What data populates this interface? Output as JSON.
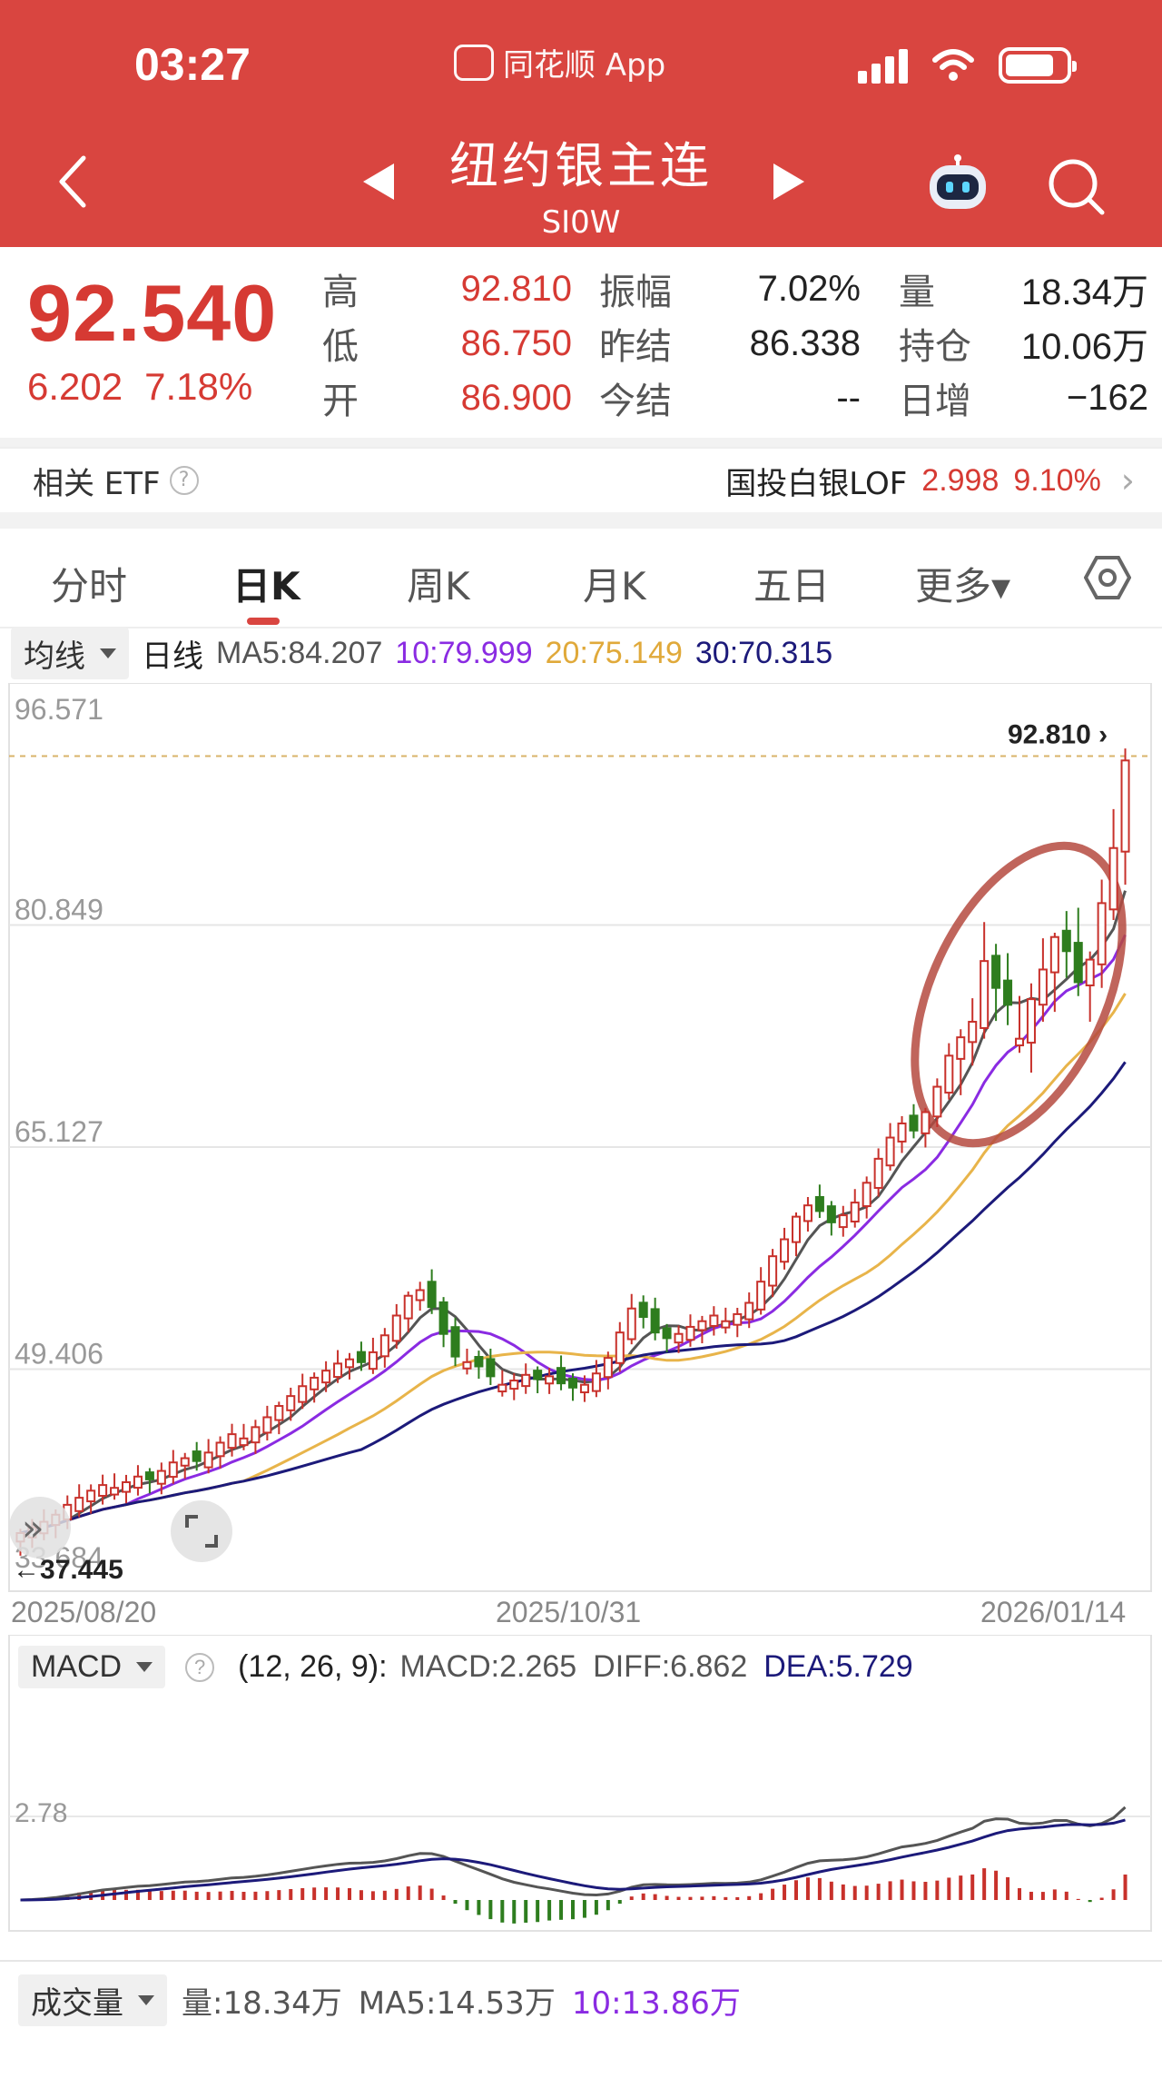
{
  "status": {
    "time": "03:27",
    "app_name": "同花顺 App"
  },
  "header": {
    "title": "纽约银主连",
    "code": "SI0W"
  },
  "quote": {
    "price": "92.540",
    "change": "6.202",
    "change_pct": "7.18%",
    "rows": [
      {
        "l1": "高",
        "v1": "92.810",
        "l2": "振幅",
        "v2": "7.02%",
        "l3": "量",
        "v3": "18.34万"
      },
      {
        "l1": "低",
        "v1": "86.750",
        "l2": "昨结",
        "v2": "86.338",
        "l3": "持仓",
        "v3": "10.06万"
      },
      {
        "l1": "开",
        "v1": "86.900",
        "l2": "今结",
        "v2": "--",
        "l3": "日增",
        "v3": "−162"
      }
    ]
  },
  "etf": {
    "label": "相关 ETF",
    "help": "?",
    "name": "国投白银LOF",
    "price": "2.998",
    "pct": "9.10%"
  },
  "tabs": [
    "分时",
    "日K",
    "周K",
    "月K",
    "五日",
    "更多▾"
  ],
  "indicator": {
    "select_label": "均线",
    "period": "日线",
    "ma5": "MA5:84.207",
    "ma10": "10:79.999",
    "ma20": "20:75.149",
    "ma30": "30:70.315"
  },
  "kchart": {
    "y_labels": [
      "96.571",
      "80.849",
      "65.127",
      "49.406",
      "33.684"
    ],
    "high_marker": "92.810",
    "low_marker": "←37.445",
    "dates": [
      "2025/08/20",
      "2025/10/31",
      "2026/01/14"
    ]
  },
  "macd": {
    "select_label": "MACD",
    "params": "(12, 26, 9):",
    "macd": "MACD:2.265",
    "diff": "DIFF:6.862",
    "dea": "DEA:5.729",
    "y_label": "2.78"
  },
  "volume": {
    "select_label": "成交量",
    "vol": "量:18.34万",
    "ma5": "MA5:14.53万",
    "ma10": "10:13.86万"
  },
  "colors": {
    "header": "#d94540",
    "up": "#c8312b",
    "down": "#2e7d1e",
    "ma5": "#555555",
    "ma10": "#8a2be2",
    "ma20": "#e8b44a",
    "ma30": "#1c1a7a",
    "annotation": "#b54a3f"
  },
  "chart_data": {
    "type": "candlestick",
    "x_range": [
      "2025/08/20",
      "2026/01/14"
    ],
    "ylim": [
      33.684,
      96.571
    ],
    "y_ticks": [
      96.571,
      80.849,
      65.127,
      49.406,
      33.684
    ],
    "closes": [
      37.8,
      38.2,
      38.6,
      39.1,
      39.8,
      40.3,
      40.8,
      41.2,
      41.0,
      41.4,
      41.8,
      41.6,
      42.2,
      42.8,
      43.1,
      42.9,
      43.5,
      44.2,
      44.8,
      44.5,
      45.3,
      46.0,
      46.8,
      47.5,
      48.2,
      48.8,
      49.3,
      49.8,
      50.1,
      49.9,
      50.6,
      51.8,
      53.2,
      54.6,
      55.0,
      53.8,
      51.9,
      50.3,
      49.9,
      49.6,
      48.9,
      48.3,
      48.6,
      49.0,
      48.7,
      48.9,
      48.4,
      48.1,
      48.3,
      49.1,
      50.2,
      52.0,
      53.7,
      53.1,
      52.0,
      51.6,
      51.9,
      52.4,
      52.8,
      53.2,
      52.8,
      53.3,
      54.1,
      55.6,
      57.4,
      58.6,
      60.2,
      61.0,
      60.6,
      59.8,
      60.3,
      61.2,
      62.6,
      64.3,
      65.8,
      66.8,
      66.3,
      67.6,
      69.4,
      71.6,
      72.9,
      74.0,
      78.3,
      76.4,
      75.2,
      72.8,
      75.6,
      77.7,
      80.0,
      79.0,
      76.8,
      78.4,
      82.4,
      86.3,
      92.5
    ],
    "ma5_last": 84.207,
    "ma10_last": 79.999,
    "ma20_last": 75.149,
    "ma30_last": 70.315,
    "last_close": 92.54,
    "high": 92.81,
    "low": 37.445
  }
}
